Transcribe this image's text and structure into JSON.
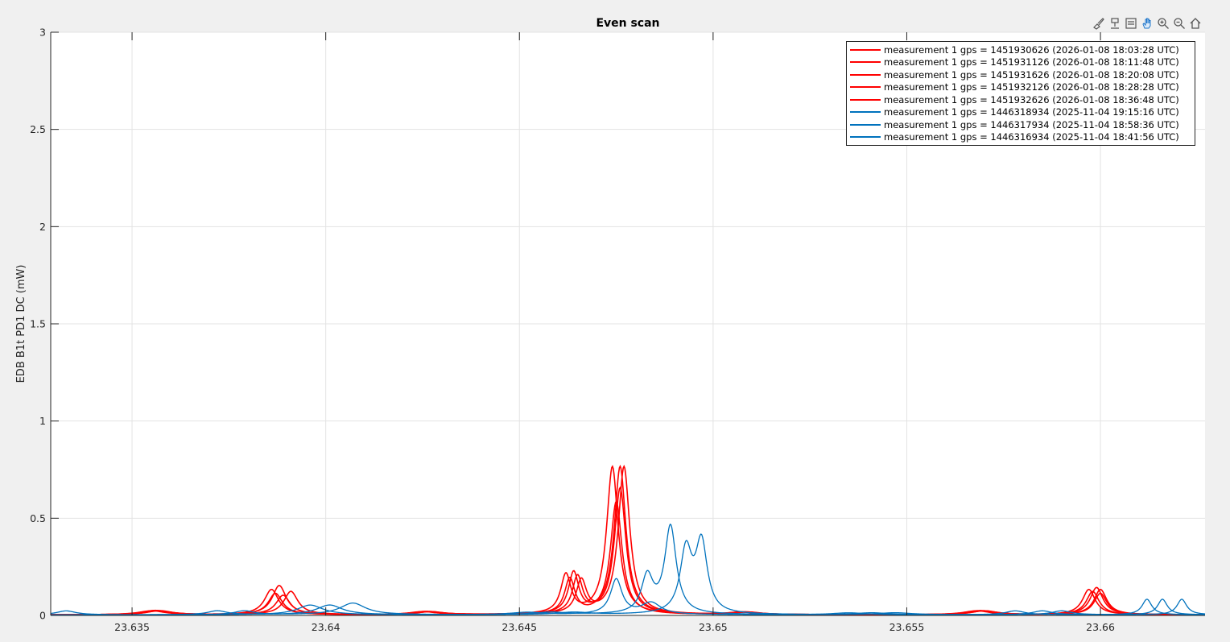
{
  "figure": {
    "toolbar": [
      {
        "name": "brush-icon"
      },
      {
        "name": "data-tips-icon"
      },
      {
        "name": "restore-view-icon"
      },
      {
        "name": "pan-icon"
      },
      {
        "name": "zoom-in-icon"
      },
      {
        "name": "zoom-out-icon"
      },
      {
        "name": "home-icon"
      }
    ]
  },
  "chart_data": {
    "type": "line",
    "title": "Even scan",
    "xlabel": "",
    "ylabel": "EDB B1t PD1 DC (mW)",
    "xlim": [
      23.6329,
      23.6627
    ],
    "ylim": [
      0,
      3
    ],
    "xticks": [
      23.635,
      23.64,
      23.645,
      23.65,
      23.655,
      23.66
    ],
    "xtick_labels": [
      "23.635",
      "23.64",
      "23.645",
      "23.65",
      "23.655",
      "23.66"
    ],
    "yticks": [
      0,
      0.5,
      1,
      1.5,
      2,
      2.5,
      3
    ],
    "ytick_labels": [
      "0",
      "0.5",
      "1",
      "1.5",
      "2",
      "2.5",
      "3"
    ],
    "grid": true,
    "legend_position": "top-right",
    "colors": {
      "red": "#ff0000",
      "blue": "#0072bd"
    },
    "series": [
      {
        "name": "measurement 1 gps = 1451930626 (2026-01-08 18:03:28 UTC)",
        "color": "#ff0000",
        "peaks": [
          [
            23.6355,
            0.02,
            0.0004
          ],
          [
            23.6386,
            0.13,
            0.00022
          ],
          [
            23.6425,
            0.015,
            0.0004
          ],
          [
            23.6462,
            0.2,
            0.00016
          ],
          [
            23.6474,
            0.76,
            0.00018
          ],
          [
            23.6507,
            0.012,
            0.0004
          ],
          [
            23.6568,
            0.02,
            0.0004
          ],
          [
            23.6597,
            0.13,
            0.0002
          ]
        ]
      },
      {
        "name": "measurement 1 gps = 1451931126 (2026-01-08 18:11:48 UTC)",
        "color": "#ff0000",
        "peaks": [
          [
            23.6356,
            0.02,
            0.0004
          ],
          [
            23.6387,
            0.11,
            0.00022
          ],
          [
            23.6426,
            0.015,
            0.0004
          ],
          [
            23.6463,
            0.18,
            0.00016
          ],
          [
            23.6475,
            0.58,
            0.00018
          ],
          [
            23.6508,
            0.012,
            0.0004
          ],
          [
            23.6569,
            0.02,
            0.0004
          ],
          [
            23.6598,
            0.12,
            0.0002
          ]
        ]
      },
      {
        "name": "measurement 1 gps = 1451931626 (2026-01-08 18:20:08 UTC)",
        "color": "#ff0000",
        "peaks": [
          [
            23.6356,
            0.022,
            0.0004
          ],
          [
            23.6388,
            0.15,
            0.00022
          ],
          [
            23.6426,
            0.016,
            0.0004
          ],
          [
            23.6464,
            0.21,
            0.00016
          ],
          [
            23.6476,
            0.76,
            0.00018
          ],
          [
            23.6508,
            0.013,
            0.0004
          ],
          [
            23.6569,
            0.021,
            0.0004
          ],
          [
            23.6599,
            0.14,
            0.0002
          ]
        ]
      },
      {
        "name": "measurement 1 gps = 1451932126 (2026-01-08 18:28:28 UTC)",
        "color": "#ff0000",
        "peaks": [
          [
            23.6357,
            0.02,
            0.0004
          ],
          [
            23.6389,
            0.1,
            0.00022
          ],
          [
            23.6427,
            0.015,
            0.0004
          ],
          [
            23.6465,
            0.19,
            0.00016
          ],
          [
            23.6476,
            0.65,
            0.00018
          ],
          [
            23.6509,
            0.012,
            0.0004
          ],
          [
            23.657,
            0.02,
            0.0004
          ],
          [
            23.66,
            0.11,
            0.0002
          ]
        ]
      },
      {
        "name": "measurement 1 gps = 1451932626 (2026-01-08 18:36:48 UTC)",
        "color": "#ff0000",
        "peaks": [
          [
            23.6357,
            0.021,
            0.0004
          ],
          [
            23.6391,
            0.12,
            0.00022
          ],
          [
            23.6427,
            0.015,
            0.0004
          ],
          [
            23.6466,
            0.17,
            0.00016
          ],
          [
            23.6477,
            0.76,
            0.00018
          ],
          [
            23.6509,
            0.012,
            0.0004
          ],
          [
            23.657,
            0.02,
            0.0004
          ],
          [
            23.66,
            0.13,
            0.0002
          ]
        ]
      },
      {
        "name": "measurement 1 gps = 1446318934 (2025-11-04 19:15:16 UTC)",
        "color": "#0072bd",
        "peaks": [
          [
            23.6333,
            0.02,
            0.0003
          ],
          [
            23.6396,
            0.05,
            0.0004
          ],
          [
            23.6452,
            0.012,
            0.0005
          ],
          [
            23.6475,
            0.18,
            0.00018
          ],
          [
            23.6484,
            0.06,
            0.0003
          ],
          [
            23.6535,
            0.01,
            0.0005
          ],
          [
            23.6578,
            0.02,
            0.0003
          ],
          [
            23.6612,
            0.08,
            0.00015
          ]
        ]
      },
      {
        "name": "measurement 1 gps = 1446317934 (2025-11-04 18:58:36 UTC)",
        "color": "#0072bd",
        "peaks": [
          [
            23.6372,
            0.02,
            0.0003
          ],
          [
            23.6401,
            0.05,
            0.0004
          ],
          [
            23.6458,
            0.012,
            0.0005
          ],
          [
            23.6483,
            0.19,
            0.00018
          ],
          [
            23.6489,
            0.45,
            0.00018
          ],
          [
            23.6541,
            0.01,
            0.0005
          ],
          [
            23.6585,
            0.02,
            0.0003
          ],
          [
            23.6616,
            0.08,
            0.00015
          ]
        ]
      },
      {
        "name": "measurement 1 gps = 1446316934 (2025-11-04 18:41:56 UTC)",
        "color": "#0072bd",
        "peaks": [
          [
            23.6379,
            0.02,
            0.0003
          ],
          [
            23.6407,
            0.06,
            0.0004
          ],
          [
            23.6464,
            0.012,
            0.0005
          ],
          [
            23.6493,
            0.32,
            0.00018
          ],
          [
            23.6497,
            0.36,
            0.00018
          ],
          [
            23.6547,
            0.01,
            0.0005
          ],
          [
            23.659,
            0.02,
            0.0003
          ],
          [
            23.6621,
            0.08,
            0.00015
          ]
        ]
      }
    ]
  }
}
